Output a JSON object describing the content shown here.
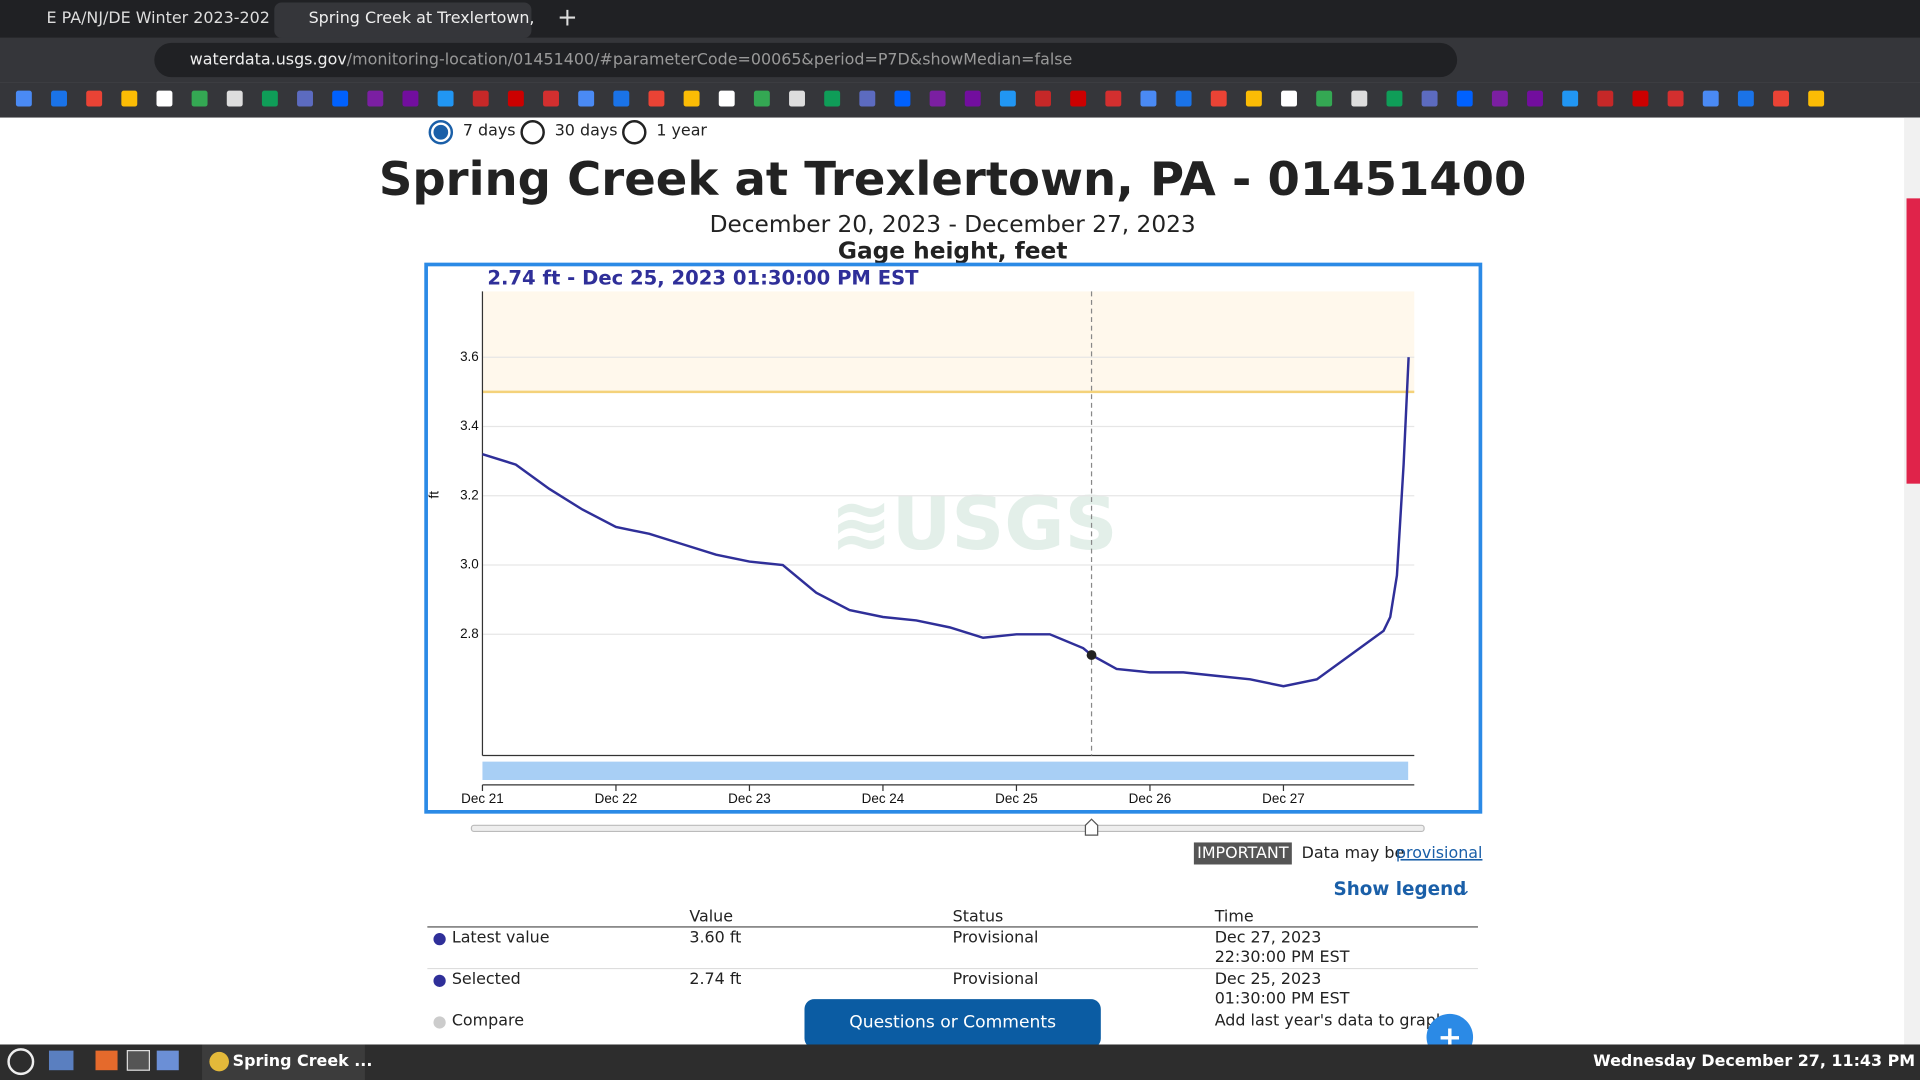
{
  "browser": {
    "tabs": [
      "E PA/NJ/DE Winter 2023-202",
      "Spring Creek at Trexlertown,"
    ],
    "url_host": "waterdata.usgs.gov",
    "url_path": "/monitoring-location/01451400/#parameterCode=00065&period=P7D&showMedian=false"
  },
  "periods": [
    "7 days",
    "30 days",
    "1 year"
  ],
  "header": {
    "title": "Spring Creek at Trexlertown, PA - 01451400",
    "dates": "December 20, 2023 - December 27, 2023"
  },
  "chart_data": {
    "type": "line",
    "title": "Gage height, feet",
    "ylabel": "ft",
    "tooltip": "2.74 ft - Dec 25, 2023 01:30:00 PM EST",
    "x": [
      0,
      0.25,
      0.5,
      0.75,
      1,
      1.25,
      1.5,
      1.75,
      2,
      2.25,
      2.5,
      2.75,
      3,
      3.25,
      3.5,
      3.75,
      4,
      4.25,
      4.5,
      4.5625,
      4.75,
      5,
      5.25,
      5.5,
      5.75,
      6,
      6.25,
      6.5,
      6.75,
      6.8,
      6.85,
      6.9,
      6.9375
    ],
    "series": [
      {
        "name": "Gage height",
        "color": "#2f2f99",
        "values": [
          3.32,
          3.29,
          3.22,
          3.16,
          3.11,
          3.09,
          3.06,
          3.03,
          3.01,
          3.0,
          2.92,
          2.87,
          2.85,
          2.84,
          2.82,
          2.79,
          2.8,
          2.8,
          2.76,
          2.74,
          2.7,
          2.69,
          2.69,
          2.68,
          2.67,
          2.65,
          2.67,
          2.74,
          2.81,
          2.85,
          2.97,
          3.29,
          3.6
        ]
      }
    ],
    "selected_x": 4.5625,
    "hline": 3.5,
    "xlim": [
      0,
      6.98
    ],
    "ylim": [
      2.45,
      3.79
    ],
    "xticks": [
      {
        "value": 0,
        "label": "Dec 21"
      },
      {
        "value": 1,
        "label": "Dec 22"
      },
      {
        "value": 2,
        "label": "Dec 23"
      },
      {
        "value": 3,
        "label": "Dec 24"
      },
      {
        "value": 4,
        "label": "Dec 25"
      },
      {
        "value": 5,
        "label": "Dec 26"
      },
      {
        "value": 6,
        "label": "Dec 27"
      }
    ],
    "yticks": [
      2.8,
      {
        "value": 3,
        "label": "3.0"
      },
      3.2,
      3.4,
      3.6
    ],
    "grid": true
  },
  "notice": {
    "badge": "IMPORTANT",
    "text": "Data may be",
    "link": "provisional"
  },
  "legend_toggle": "Show legend",
  "table": {
    "columns": [
      "Value",
      "Status",
      "Time"
    ],
    "rows": [
      [
        "Latest value",
        "3.60 ft",
        "Provisional",
        "Dec 27, 2023",
        "22:30:00 PM EST"
      ],
      [
        "Selected",
        "2.74 ft",
        "Provisional",
        "Dec 25, 2023",
        "01:30:00 PM EST"
      ]
    ]
  },
  "compare": {
    "label": "Compare",
    "text": "Add last year's data to graph"
  },
  "feedback": "Questions or Comments",
  "taskbar": {
    "app": "Spring Creek ...",
    "clock": "Wednesday December 27, 11:43 PM"
  }
}
